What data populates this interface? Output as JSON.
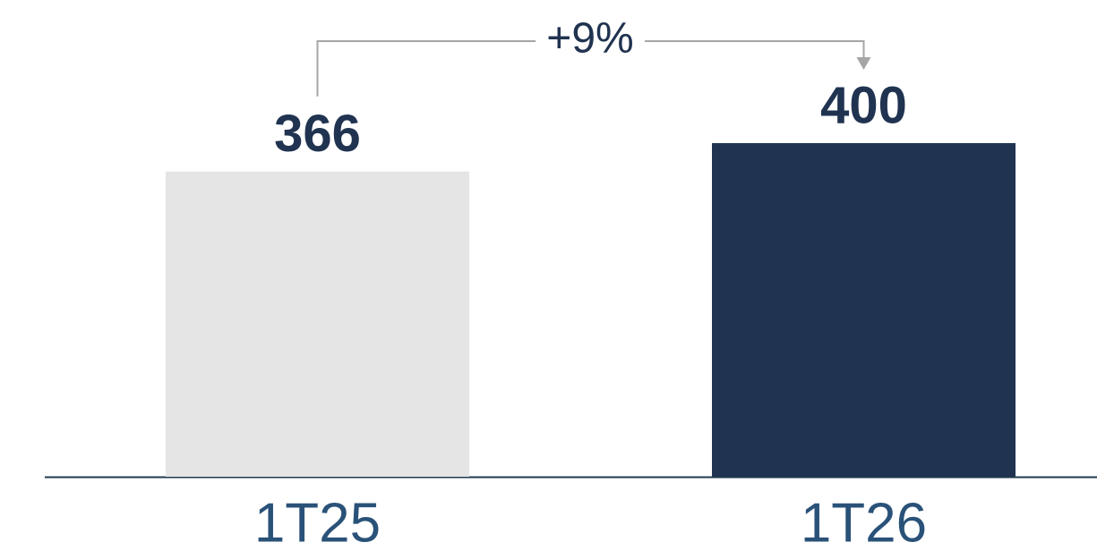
{
  "chart_data": {
    "type": "bar",
    "categories": [
      "1T25",
      "1T26"
    ],
    "values": [
      366,
      400
    ],
    "colors": [
      "#e5e5e5",
      "#203350"
    ],
    "annotation": "+9%"
  }
}
